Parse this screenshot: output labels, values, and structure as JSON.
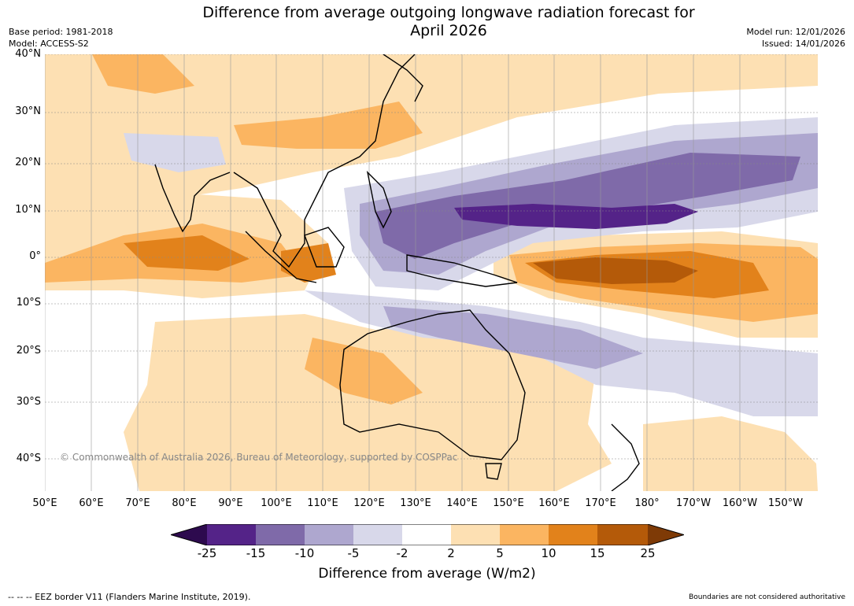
{
  "title": {
    "line1": "Difference from average outgoing longwave radiation forecast for",
    "line2": "April 2026"
  },
  "meta_left": {
    "base_period": "Base period: 1981-2018",
    "model": "Model: ACCESS-S2"
  },
  "meta_right": {
    "model_run": "Model run: 12/01/2026",
    "issued": "Issued: 14/01/2026"
  },
  "latitude_labels": [
    "40°N",
    "30°N",
    "20°N",
    "10°N",
    "0°",
    "10°S",
    "20°S",
    "30°S",
    "40°S"
  ],
  "longitude_labels": [
    "50°E",
    "60°E",
    "70°E",
    "80°E",
    "90°E",
    "100°E",
    "110°E",
    "120°E",
    "130°E",
    "140°E",
    "150°E",
    "160°E",
    "170°E",
    "180°",
    "170°W",
    "160°W",
    "150°W"
  ],
  "copyright": "© Commonwealth of Australia 2026, Bureau of Meteorology, supported by COSPPac",
  "colorbar": {
    "ticks": [
      "-25",
      "-15",
      "-10",
      "-5",
      "-2",
      "2",
      "5",
      "10",
      "15",
      "25"
    ],
    "colors": [
      "#2d0a4e",
      "#542388",
      "#7f6aa9",
      "#aea7cf",
      "#d8d8ea",
      "#ffffff",
      "#fde0b3",
      "#fbb561",
      "#e2821b",
      "#b45a09",
      "#7e3a06"
    ],
    "title": "Difference from average (W/m2)"
  },
  "footer_left": "--  --  -- EEZ border V11 (Flanders Marine Institute, 2019).",
  "footer_right": "Boundaries are not considered authoritative"
}
